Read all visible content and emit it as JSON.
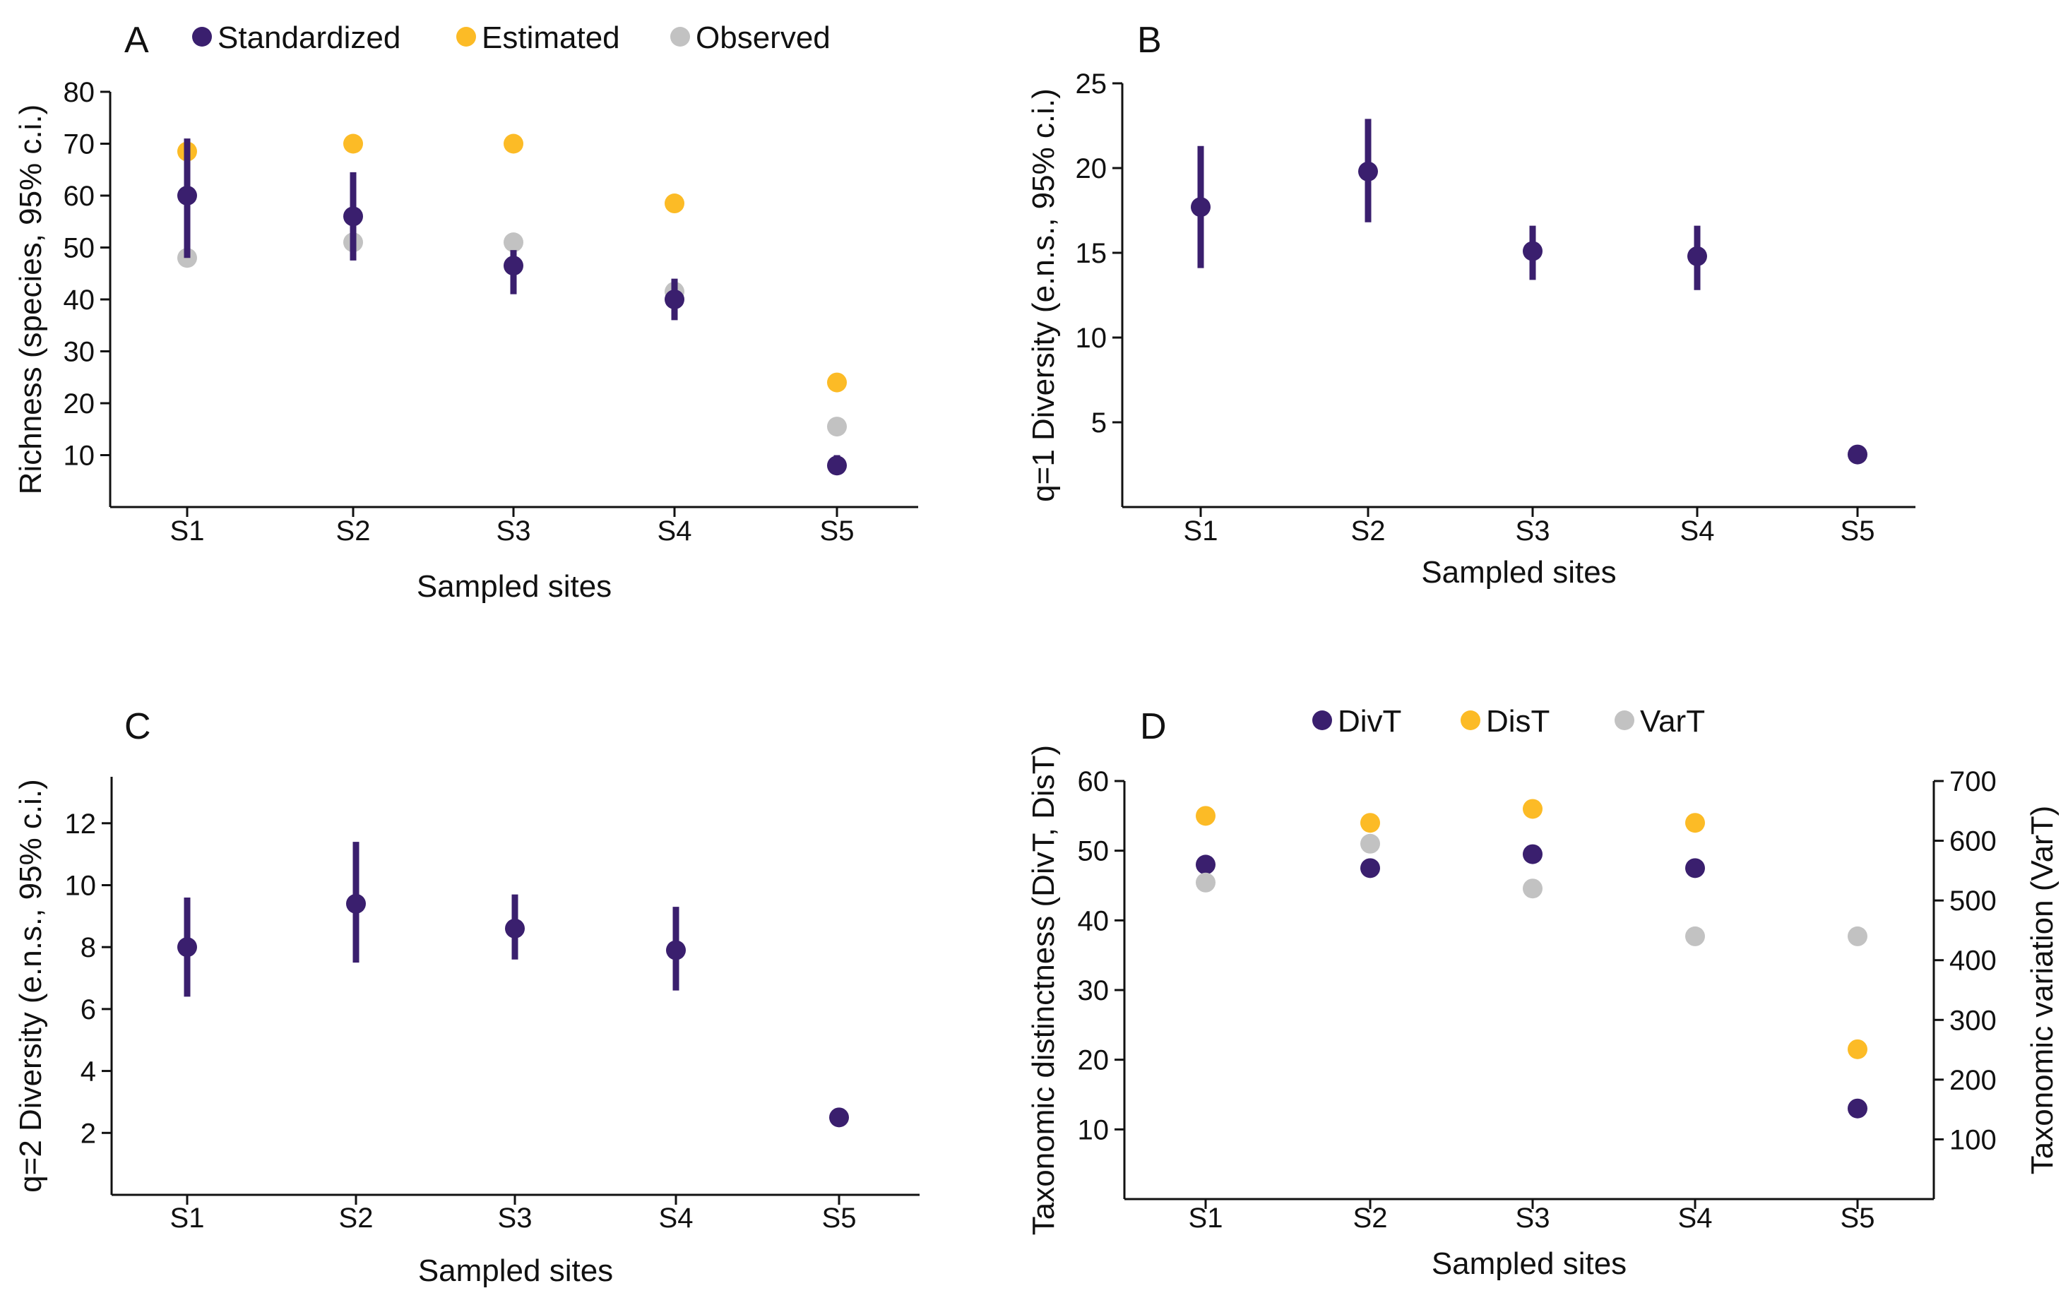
{
  "colors": {
    "standardized": "#3a1f6e",
    "estimated": "#fcbb26",
    "observed": "#c2c2c2",
    "axis": "#111111"
  },
  "chart_data": [
    {
      "panel": "A",
      "type": "scatter",
      "categories": [
        "S1",
        "S2",
        "S3",
        "S4",
        "S5"
      ],
      "xlabel": "Sampled sites",
      "ylabel": "Richness  (species, 95% c.i.)",
      "ylim": [
        0,
        80
      ],
      "yticks": [
        10,
        20,
        30,
        40,
        50,
        60,
        70,
        80
      ],
      "legend": [
        "Standardized",
        "Estimated",
        "Observed"
      ],
      "series": [
        {
          "name": "Standardized",
          "color": "standardized",
          "values": [
            60,
            56,
            46.5,
            40,
            8
          ],
          "ci_low": [
            48,
            47.5,
            41,
            36,
            6.5
          ],
          "ci_high": [
            71,
            64.5,
            49.5,
            44,
            10
          ]
        },
        {
          "name": "Estimated",
          "color": "estimated",
          "values": [
            68.5,
            70,
            70,
            58.5,
            24
          ]
        },
        {
          "name": "Observed",
          "color": "observed",
          "values": [
            48,
            51,
            51,
            41.5,
            15.5
          ]
        }
      ]
    },
    {
      "panel": "B",
      "type": "scatter",
      "categories": [
        "S1",
        "S2",
        "S3",
        "S4",
        "S5"
      ],
      "xlabel": "Sampled sites",
      "ylabel": "q=1 Diversity (e.n.s., 95% c.i.)",
      "ylim": [
        0,
        25
      ],
      "yticks": [
        5,
        10,
        15,
        20,
        25
      ],
      "series": [
        {
          "name": "Standardized",
          "color": "standardized",
          "values": [
            17.7,
            19.8,
            15.1,
            14.8,
            3.1
          ],
          "ci_low": [
            14.1,
            16.8,
            13.4,
            12.8,
            2.8
          ],
          "ci_high": [
            21.3,
            22.9,
            16.6,
            16.6,
            3.4
          ]
        }
      ]
    },
    {
      "panel": "C",
      "type": "scatter",
      "categories": [
        "S1",
        "S2",
        "S3",
        "S4",
        "S5"
      ],
      "xlabel": "Sampled sites",
      "ylabel": "q=2 Diversity (e.n.s., 95% c.i.)",
      "ylim": [
        0,
        13.5
      ],
      "yticks": [
        2,
        4,
        6,
        8,
        10,
        12
      ],
      "series": [
        {
          "name": "Standardized",
          "color": "standardized",
          "values": [
            8,
            9.4,
            8.6,
            7.9,
            2.5
          ],
          "ci_low": [
            6.4,
            7.5,
            7.6,
            6.6,
            2.3
          ],
          "ci_high": [
            9.6,
            11.4,
            9.7,
            9.3,
            2.7
          ]
        }
      ]
    },
    {
      "panel": "D",
      "type": "scatter",
      "categories": [
        "S1",
        "S2",
        "S3",
        "S4",
        "S5"
      ],
      "xlabel": "Sampled sites",
      "ylabel": "Taxonomic distinctness (DivT, DisT)",
      "ylabel_right": "Taxonomic variation (VarT)",
      "ylim": [
        0,
        60
      ],
      "yticks": [
        10,
        20,
        30,
        40,
        50,
        60
      ],
      "ylim_right": [
        0,
        700
      ],
      "yticks_right": [
        100,
        200,
        300,
        400,
        500,
        600,
        700
      ],
      "legend": [
        "DivT",
        "DisT",
        "VarT"
      ],
      "series": [
        {
          "name": "DivT",
          "color": "standardized",
          "axis": "left",
          "values": [
            48,
            47.5,
            49.5,
            47.5,
            13
          ]
        },
        {
          "name": "DisT",
          "color": "estimated",
          "axis": "left",
          "values": [
            55,
            54,
            56,
            54,
            21.5
          ]
        },
        {
          "name": "VarT",
          "color": "observed",
          "axis": "right",
          "values": [
            530,
            595,
            520,
            440,
            440
          ]
        }
      ]
    }
  ]
}
